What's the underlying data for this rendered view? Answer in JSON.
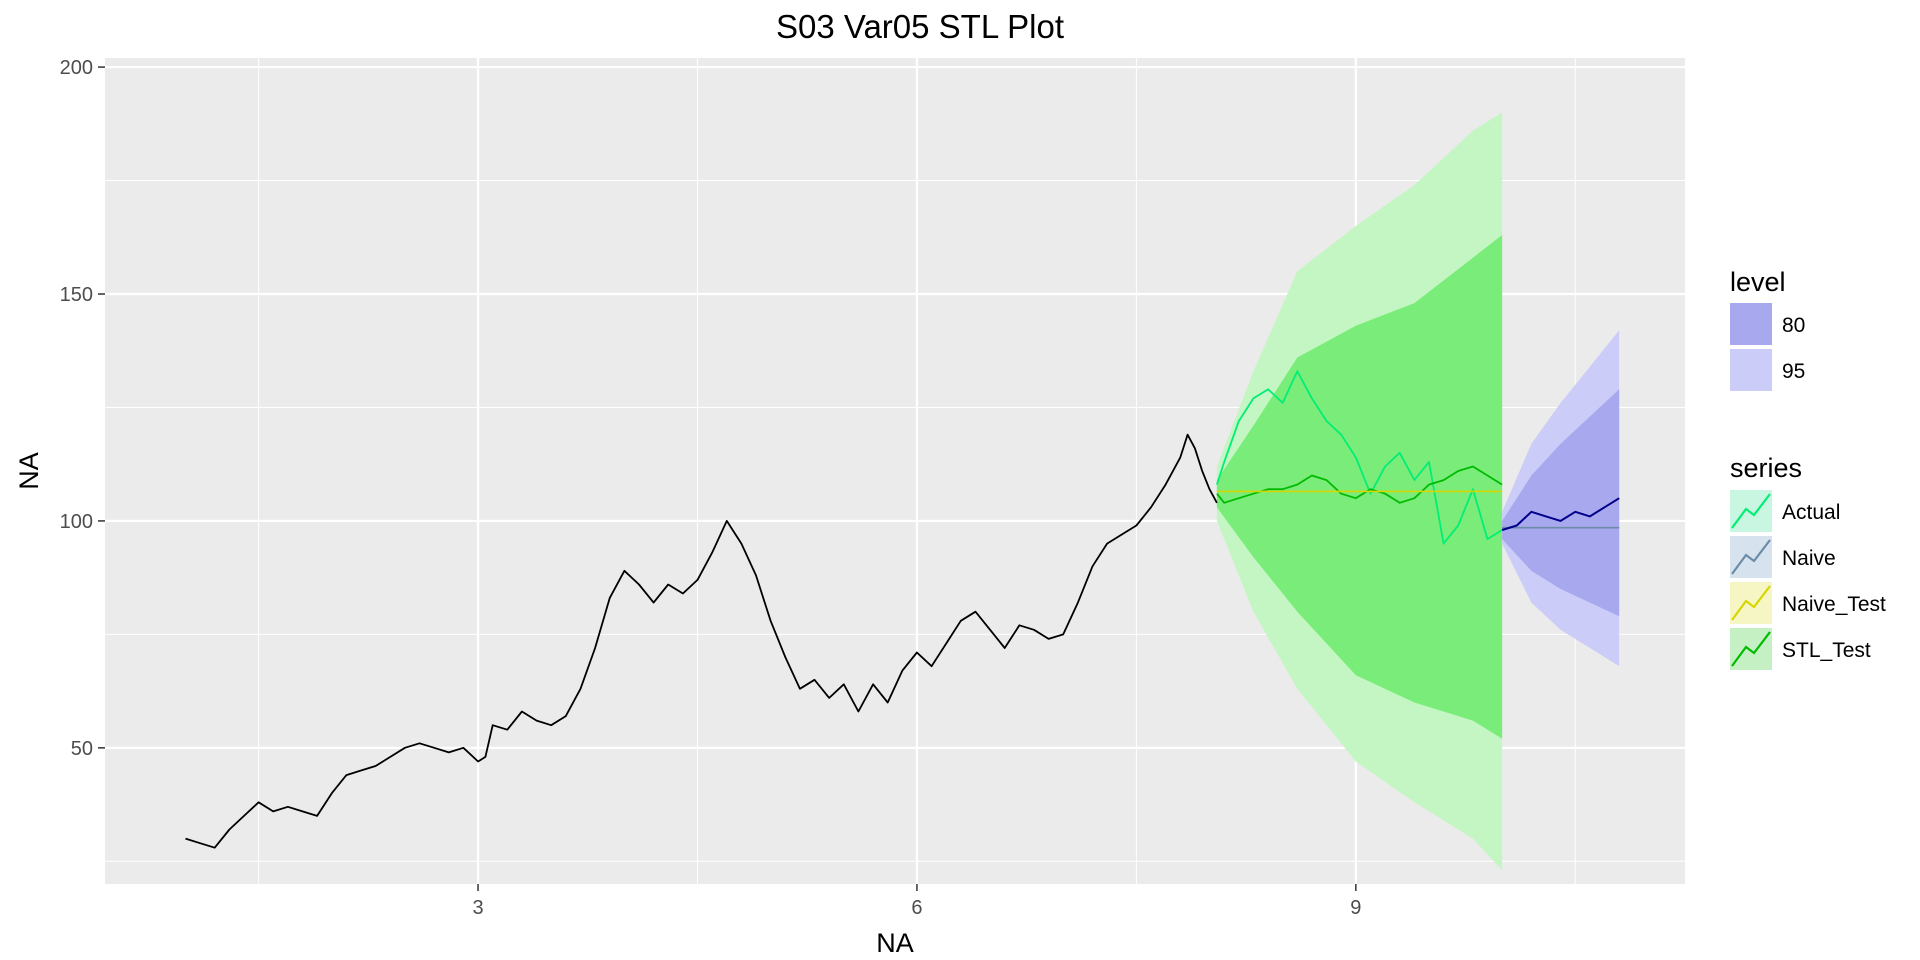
{
  "chart_data": {
    "type": "line",
    "title": "S03 Var05 STL Plot",
    "xlabel": "NA",
    "ylabel": "NA",
    "xlim": [
      0.45,
      11.25
    ],
    "ylim": [
      20,
      202
    ],
    "x_ticks": [
      3,
      6,
      9
    ],
    "x_tick_labels": [
      "3",
      "6",
      "9"
    ],
    "y_ticks": [
      50,
      100,
      150,
      200
    ],
    "y_tick_labels": [
      "50",
      "100",
      "150",
      "200"
    ],
    "grid": true,
    "legend_position": "right",
    "colors": {
      "panel": "#ebebeb",
      "grid": "#ffffff",
      "history": "#000000",
      "actual": "#00ee76",
      "naive": "#6c8ba6",
      "naive_test": "#d6d600",
      "stl_test": "#00bb00",
      "stl_band_95": "#c4f6c4",
      "stl_band_80": "#7aec7a",
      "naive_band_95": "#ccccf8",
      "naive_band_80": "#a8a8ee",
      "naive_mean": "#00008b"
    },
    "legend": {
      "level": {
        "title": "level",
        "items": [
          {
            "label": "80",
            "color": "#a8a8ee"
          },
          {
            "label": "95",
            "color": "#ccccf8"
          }
        ]
      },
      "series": {
        "title": "series",
        "items": [
          {
            "label": "Actual",
            "color": "#00ee76",
            "fill": "#c9f6e0"
          },
          {
            "label": "Naive",
            "color": "#6c8ba6",
            "fill": "#d6e2ee"
          },
          {
            "label": "Naive_Test",
            "color": "#d6d600",
            "fill": "#f6f6c4"
          },
          {
            "label": "STL_Test",
            "color": "#00bb00",
            "fill": "#c4f0c4"
          }
        ]
      }
    },
    "series": [
      {
        "name": "history",
        "x": [
          1.0,
          1.1,
          1.2,
          1.3,
          1.4,
          1.5,
          1.6,
          1.7,
          1.8,
          1.9,
          2.0,
          2.1,
          2.2,
          2.3,
          2.4,
          2.5,
          2.6,
          2.7,
          2.8,
          2.9,
          3.0,
          3.05,
          3.1,
          3.2,
          3.3,
          3.4,
          3.5,
          3.6,
          3.7,
          3.8,
          3.9,
          4.0,
          4.1,
          4.2,
          4.25,
          4.3,
          4.4,
          4.5,
          4.6,
          4.7,
          4.8,
          4.9,
          5.0,
          5.1,
          5.2,
          5.3,
          5.4,
          5.5,
          5.6,
          5.7,
          5.8,
          5.9,
          6.0,
          6.1,
          6.2,
          6.3,
          6.4,
          6.5,
          6.6,
          6.7,
          6.8,
          6.9,
          7.0,
          7.1,
          7.2,
          7.3,
          7.4,
          7.5,
          7.6,
          7.7,
          7.8,
          7.85,
          7.9,
          7.95,
          8.0,
          8.05
        ],
        "values": [
          30,
          29,
          28,
          32,
          35,
          38,
          36,
          37,
          36,
          35,
          40,
          44,
          45,
          46,
          48,
          50,
          51,
          50,
          49,
          50,
          47,
          48,
          55,
          54,
          58,
          56,
          55,
          57,
          63,
          72,
          83,
          89,
          86,
          82,
          84,
          86,
          84,
          87,
          93,
          100,
          95,
          88,
          78,
          70,
          63,
          65,
          61,
          64,
          58,
          64,
          60,
          67,
          71,
          68,
          73,
          78,
          80,
          76,
          72,
          77,
          76,
          74,
          75,
          82,
          90,
          95,
          97,
          99,
          103,
          108,
          114,
          119,
          116,
          111,
          107,
          104
        ]
      },
      {
        "name": "Actual",
        "x": [
          8.05,
          8.1,
          8.2,
          8.3,
          8.4,
          8.5,
          8.6,
          8.7,
          8.8,
          8.9,
          9.0,
          9.1,
          9.2,
          9.3,
          9.4,
          9.5,
          9.6,
          9.7,
          9.8,
          9.9,
          10.0
        ],
        "values": [
          108,
          113,
          122,
          127,
          129,
          126,
          133,
          127,
          122,
          119,
          114,
          106,
          112,
          115,
          109,
          113,
          95,
          99,
          107,
          96,
          98
        ]
      },
      {
        "name": "STL_Test",
        "x": [
          8.05,
          8.1,
          8.2,
          8.3,
          8.4,
          8.5,
          8.6,
          8.7,
          8.8,
          8.9,
          9.0,
          9.1,
          9.2,
          9.3,
          9.4,
          9.5,
          9.6,
          9.7,
          9.8,
          9.9,
          10.0
        ],
        "values": [
          106,
          104,
          105,
          106,
          107,
          107,
          108,
          110,
          109,
          106,
          105,
          107,
          106,
          104,
          105,
          108,
          109,
          111,
          112,
          110,
          108
        ]
      },
      {
        "name": "Naive_Test",
        "x": [
          8.05,
          10.0
        ],
        "values": [
          106.5,
          106.5
        ]
      },
      {
        "name": "Naive",
        "x": [
          10.0,
          10.8
        ],
        "values": [
          98.5,
          98.5
        ]
      },
      {
        "name": "Naive mean",
        "x": [
          10.0,
          10.1,
          10.2,
          10.3,
          10.4,
          10.5,
          10.6,
          10.7,
          10.8
        ],
        "values": [
          98,
          99,
          102,
          101,
          100,
          102,
          101,
          103,
          105
        ]
      }
    ],
    "bands": [
      {
        "name": "STL 95",
        "x": [
          8.05,
          8.3,
          8.6,
          9.0,
          9.4,
          9.8,
          10.0
        ],
        "lower": [
          100,
          80,
          63,
          47,
          38,
          30,
          23
        ],
        "upper": [
          112,
          133,
          155,
          165,
          174,
          186,
          190
        ]
      },
      {
        "name": "STL 80",
        "x": [
          8.05,
          8.3,
          8.6,
          9.0,
          9.4,
          9.8,
          10.0
        ],
        "lower": [
          103,
          92,
          80,
          66,
          60,
          56,
          52
        ],
        "upper": [
          109,
          121,
          136,
          143,
          148,
          158,
          163
        ]
      },
      {
        "name": "Naive 95",
        "x": [
          10.0,
          10.2,
          10.4,
          10.6,
          10.8
        ],
        "lower": [
          95,
          82,
          76,
          72,
          68
        ],
        "upper": [
          102,
          117,
          126,
          134,
          142
        ]
      },
      {
        "name": "Naive 80",
        "x": [
          10.0,
          10.2,
          10.4,
          10.6,
          10.8
        ],
        "lower": [
          96,
          89,
          85,
          82,
          79
        ],
        "upper": [
          100,
          110,
          117,
          123,
          129
        ]
      }
    ]
  }
}
